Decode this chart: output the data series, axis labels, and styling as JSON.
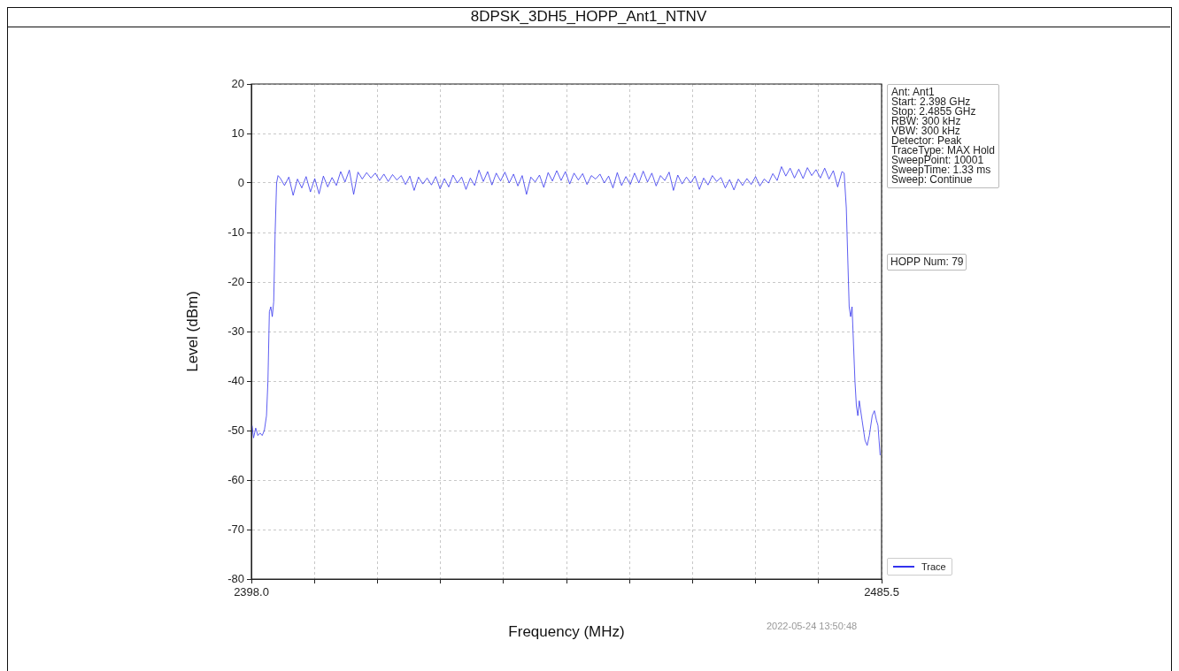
{
  "chart_data": {
    "type": "line",
    "title": "8DPSK_3DH5_HOPP_Ant1_NTNV",
    "xlabel": "Frequency (MHz)",
    "ylabel": "Level (dBm)",
    "xlim": [
      2398.0,
      2485.5
    ],
    "xticks": [
      {
        "value": 2398.0,
        "label": "2398.0"
      },
      {
        "value": 2406.75,
        "label": null
      },
      {
        "value": 2415.5,
        "label": null
      },
      {
        "value": 2424.25,
        "label": null
      },
      {
        "value": 2433.0,
        "label": null
      },
      {
        "value": 2441.75,
        "label": null
      },
      {
        "value": 2450.5,
        "label": null
      },
      {
        "value": 2459.25,
        "label": null
      },
      {
        "value": 2468.0,
        "label": null
      },
      {
        "value": 2476.75,
        "label": null
      },
      {
        "value": 2485.5,
        "label": "2485.5"
      }
    ],
    "ylim": [
      -80,
      20
    ],
    "yticks": [
      -80,
      -70,
      -60,
      -50,
      -40,
      -30,
      -20,
      -10,
      0,
      10,
      20
    ],
    "grid": true,
    "legend": "bottom right",
    "marker": "none",
    "line_style": "solid",
    "annotations": [
      "Ant: Ant1\nStart: 2.398 GHz\nStop: 2.4855 GHz\nRBW: 300 kHz\nVBW: 300 kHz\nDetector: Peak\nTraceType: MAX Hold\nSweepPoint: 10001\nSweepTime: 1.33 ms\nSweep: Continue",
      "HOPP Num: 79",
      "2022-05-24 13:50:48"
    ],
    "series": [
      {
        "name": "Trace",
        "color": "#3333ee",
        "x": [
          2398.1,
          2398.3,
          2398.6,
          2398.9,
          2399.2,
          2399.5,
          2399.8,
          2400.1,
          2400.3,
          2400.5,
          2400.7,
          2400.9,
          2401.1,
          2401.3,
          2401.5,
          2401.7,
          2402.0,
          2402.6,
          2403.2,
          2403.8,
          2404.4,
          2405.0,
          2405.6,
          2406.2,
          2406.8,
          2407.4,
          2408.0,
          2408.6,
          2409.2,
          2409.8,
          2410.4,
          2411.0,
          2411.6,
          2412.2,
          2412.8,
          2413.4,
          2414.0,
          2414.6,
          2415.2,
          2415.8,
          2416.4,
          2417.0,
          2417.6,
          2418.2,
          2418.8,
          2419.4,
          2420.0,
          2420.6,
          2421.2,
          2421.8,
          2422.4,
          2423.0,
          2423.6,
          2424.2,
          2424.8,
          2425.4,
          2426.0,
          2426.6,
          2427.2,
          2427.8,
          2428.4,
          2429.0,
          2429.6,
          2430.2,
          2430.8,
          2431.4,
          2432.0,
          2432.6,
          2433.2,
          2433.8,
          2434.4,
          2435.0,
          2435.6,
          2436.2,
          2436.8,
          2437.4,
          2438.0,
          2438.6,
          2439.2,
          2439.8,
          2440.4,
          2441.0,
          2441.6,
          2442.2,
          2442.8,
          2443.4,
          2444.0,
          2444.6,
          2445.2,
          2445.8,
          2446.4,
          2447.0,
          2447.6,
          2448.2,
          2448.8,
          2449.4,
          2450.0,
          2450.6,
          2451.2,
          2451.8,
          2452.4,
          2453.0,
          2453.6,
          2454.2,
          2454.8,
          2455.4,
          2456.0,
          2456.6,
          2457.2,
          2457.8,
          2458.4,
          2459.0,
          2459.6,
          2460.2,
          2460.8,
          2461.4,
          2462.0,
          2462.6,
          2463.2,
          2463.8,
          2464.4,
          2465.0,
          2465.6,
          2466.2,
          2466.8,
          2467.4,
          2468.0,
          2468.6,
          2469.2,
          2469.8,
          2470.4,
          2471.0,
          2471.6,
          2472.2,
          2472.8,
          2473.4,
          2474.0,
          2474.6,
          2475.2,
          2475.8,
          2476.4,
          2477.0,
          2477.6,
          2478.2,
          2478.8,
          2479.4,
          2480.0,
          2480.3,
          2480.6,
          2481.0,
          2481.2,
          2481.4,
          2481.8,
          2482.0,
          2482.2,
          2482.4,
          2482.8,
          2483.2,
          2483.5,
          2483.8,
          2484.2,
          2484.5,
          2484.8,
          2485.0,
          2485.15,
          2485.3
        ],
        "values": [
          -49,
          -51.5,
          -49.5,
          -51,
          -50.5,
          -51,
          -50,
          -47,
          -40,
          -26,
          -25,
          -27,
          -24,
          -10,
          0,
          1.5,
          1,
          -0.5,
          1.2,
          -2.5,
          0.8,
          -1,
          1.3,
          -1.8,
          0.9,
          -2.2,
          1.4,
          -0.8,
          1.1,
          -0.5,
          2.3,
          0.2,
          2.6,
          -2.3,
          2.2,
          0.8,
          2.1,
          1.0,
          2.0,
          0.5,
          1.8,
          0.3,
          1.7,
          0.6,
          1.5,
          -0.3,
          1.4,
          -1.5,
          1.2,
          -0.2,
          1.0,
          -0.4,
          1.3,
          -1.2,
          0.9,
          -0.8,
          1.6,
          0.0,
          1.2,
          -1.3,
          1.0,
          -0.5,
          2.6,
          0.3,
          2.3,
          -0.4,
          2.0,
          0.4,
          2.2,
          0.0,
          1.8,
          -0.6,
          1.5,
          -2.3,
          1.2,
          0.2,
          1.6,
          -0.9,
          2.1,
          0.4,
          2.5,
          0.5,
          2.3,
          -0.2,
          2.0,
          0.6,
          1.9,
          -0.3,
          1.5,
          0.8,
          1.8,
          0.0,
          1.4,
          -1.0,
          2.1,
          -0.5,
          1.3,
          -0.3,
          2.0,
          0.0,
          2.4,
          0.2,
          2.0,
          -0.6,
          1.5,
          0.5,
          2.2,
          -1.5,
          1.6,
          -0.2,
          1.2,
          0.0,
          1.4,
          -1.3,
          1.0,
          -0.4,
          1.5,
          0.3,
          1.1,
          -1.0,
          0.7,
          -1.4,
          0.8,
          -0.5,
          0.9,
          -0.3,
          1.3,
          -0.6,
          0.8,
          0.0,
          1.9,
          0.5,
          3.3,
          1.4,
          3.0,
          1.0,
          2.8,
          0.9,
          3.1,
          1.5,
          2.7,
          1.0,
          3.0,
          0.8,
          2.5,
          -0.8,
          2.3,
          2,
          -5,
          -25,
          -27,
          -25,
          -40,
          -45,
          -47,
          -44,
          -48,
          -52,
          -53,
          -51,
          -47,
          -46,
          -48,
          -49,
          -52,
          -55
        ]
      }
    ]
  }
}
